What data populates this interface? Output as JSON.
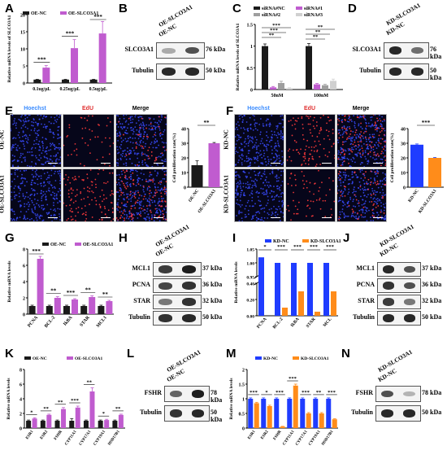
{
  "panels": {
    "A": "A",
    "B": "B",
    "C": "C",
    "D": "D",
    "E": "E",
    "F": "F",
    "G": "G",
    "H": "H",
    "I": "I",
    "J": "J",
    "K": "K",
    "L": "L",
    "M": "M",
    "N": "N"
  },
  "colors": {
    "black": "#1a1a1a",
    "purple": "#c05ccf",
    "grey": "#9e9e9e",
    "lightgrey": "#d0d0d0",
    "blue": "#1f3cff",
    "orange": "#ff8c1a",
    "hoechst": "#3b8cff",
    "edu": "#e03030",
    "merge": "#ffffff"
  },
  "chart_data": [
    {
      "id": "A",
      "type": "bar",
      "ylabel": "Relative mRNA levels of SLCO3A1",
      "categories": [
        "0.1ug/μL",
        "0.25ug/μL",
        "0.5ug/μL"
      ],
      "series": [
        {
          "name": "OE-NC",
          "values": [
            1,
            1,
            1
          ]
        },
        {
          "name": "OE-SLCO3A1",
          "values": [
            4.5,
            10.2,
            14.5
          ]
        }
      ],
      "errors": [
        [
          0.1,
          0.1,
          0.1
        ],
        [
          0.6,
          2.5,
          3.5
        ]
      ],
      "ylim": [
        0,
        20
      ],
      "yticks": [
        0,
        5,
        10,
        15,
        20
      ],
      "sig": [
        "***",
        "***",
        "***"
      ]
    },
    {
      "id": "C",
      "type": "bar",
      "ylabel": "Relative mRNA levels of SLCO3A1",
      "categories": [
        "50nM",
        "100nM"
      ],
      "series": [
        {
          "name": "siRNA#NC",
          "values": [
            1.0,
            1.0
          ]
        },
        {
          "name": "siRNA#1",
          "values": [
            0.05,
            0.12
          ]
        },
        {
          "name": "siRNA#2",
          "values": [
            0.15,
            0.1
          ]
        },
        {
          "name": "siRNA#3",
          "values": [
            0.03,
            0.2
          ]
        }
      ],
      "errors": [
        [
          0.05,
          0.06
        ],
        [
          0.02,
          0.02
        ],
        [
          0.04,
          0.02
        ],
        [
          0.01,
          0.04
        ]
      ],
      "ylim": [
        0,
        1.5
      ],
      "yticks": [
        0.0,
        0.5,
        1.0,
        1.5
      ],
      "sig": [
        "**",
        "***",
        "***",
        "**",
        "**",
        "**"
      ]
    },
    {
      "id": "E",
      "type": "bar",
      "ylabel": "Cell proliferation rate(%)",
      "categories": [
        "OE-NC",
        "OE-SLCO3A1"
      ],
      "values": [
        15,
        30
      ],
      "errors": [
        3,
        0.5
      ],
      "ylim": [
        0,
        40
      ],
      "yticks": [
        0,
        10,
        20,
        30,
        40
      ],
      "sig": [
        "**"
      ]
    },
    {
      "id": "F",
      "type": "bar",
      "ylabel": "Cell proliferation rate(%)",
      "categories": [
        "KD-NC",
        "KD-SLCO3A1"
      ],
      "values": [
        29,
        20
      ],
      "errors": [
        0.5,
        0.3
      ],
      "ylim": [
        0,
        40
      ],
      "yticks": [
        0,
        10,
        20,
        30,
        40
      ],
      "sig": [
        "***"
      ]
    },
    {
      "id": "G",
      "type": "bar",
      "ylabel": "Relative mRNA levels",
      "categories": [
        "PCNA",
        "BCL-2",
        "IkBA",
        "STAR",
        "MCL1"
      ],
      "series": [
        {
          "name": "OE-NC",
          "values": [
            1,
            1,
            1,
            1,
            1
          ]
        },
        {
          "name": "OE-SLCO3A1",
          "values": [
            6.8,
            2.0,
            1.8,
            2.1,
            1.6
          ]
        }
      ],
      "errors": [
        [
          0.1,
          0.1,
          0.1,
          0.1,
          0.1
        ],
        [
          0.3,
          0.15,
          0.1,
          0.15,
          0.1
        ]
      ],
      "ylim": [
        0,
        8
      ],
      "yticks": [
        0,
        2,
        4,
        6,
        8
      ],
      "sig": [
        "***",
        "**",
        "***",
        "**",
        "**"
      ]
    },
    {
      "id": "I",
      "type": "bar",
      "ylabel": "Relative mRNA levels",
      "categories": [
        "PCNA",
        "BCL-2",
        "IkBA",
        "STAR",
        "MCL"
      ],
      "series": [
        {
          "name": "KD-NC",
          "values": [
            1.02,
            1.0,
            1.0,
            1.0,
            1.0
          ]
        },
        {
          "name": "KD-SLCO3A1",
          "values": [
            0.65,
            0.1,
            0.3,
            0.05,
            0.3
          ]
        }
      ],
      "errors": [
        [
          0.02,
          0.01,
          0.01,
          0.01,
          0.03
        ],
        [
          0.02,
          0.01,
          0.01,
          0.01,
          0.01
        ]
      ],
      "ylim": [
        0,
        1.05
      ],
      "yticks": [
        0.0,
        0.2,
        0.4,
        0.95,
        1.0,
        1.05
      ],
      "sig": [
        "*",
        "***",
        "***",
        "***",
        "***"
      ]
    },
    {
      "id": "K",
      "type": "bar",
      "ylabel": "Relative mRNA levels",
      "categories": [
        "ESR1",
        "ESR2",
        "FSHR",
        "CYP11A1",
        "CYP17A1",
        "CYP19A1",
        "HSD17B1"
      ],
      "series": [
        {
          "name": "OE-NC",
          "values": [
            1,
            1,
            1,
            1,
            1,
            1,
            1
          ]
        },
        {
          "name": "OE-SLCO3A1",
          "values": [
            1.3,
            1.8,
            2.6,
            2.8,
            5.0,
            1.1,
            1.8
          ]
        }
      ],
      "errors": [
        [
          0.1,
          0.1,
          0.1,
          0.3,
          0.1,
          0.1,
          0.1
        ],
        [
          0.1,
          0.1,
          0.2,
          0.2,
          0.5,
          0.1,
          0.1
        ]
      ],
      "ylim": [
        0,
        8
      ],
      "yticks": [
        0,
        2,
        4,
        6,
        8
      ],
      "sig": [
        "*",
        "**",
        "**",
        "***",
        "**",
        "*",
        "**"
      ]
    },
    {
      "id": "M",
      "type": "bar",
      "ylabel": "Relative mRNA levels",
      "categories": [
        "ESR1",
        "ESR2",
        "FSHR",
        "CYP11A1",
        "CYP17A1",
        "CYP19A1",
        "HSD17B1"
      ],
      "series": [
        {
          "name": "KD-NC",
          "values": [
            1,
            1,
            1,
            1,
            1,
            1,
            1
          ]
        },
        {
          "name": "KD-SLCO3A1",
          "values": [
            0.85,
            0.75,
            0.05,
            1.45,
            0.5,
            0.5,
            0.3
          ]
        }
      ],
      "errors": [
        [
          0.03,
          0.03,
          0.03,
          0.03,
          0.03,
          0.03,
          0.03
        ],
        [
          0.03,
          0.03,
          0.01,
          0.05,
          0.03,
          0.03,
          0.02
        ]
      ],
      "ylim": [
        0,
        2.0
      ],
      "yticks": [
        0.0,
        0.5,
        1.0,
        1.5,
        2.0
      ],
      "sig": [
        "***",
        "*",
        "***",
        "***",
        "***",
        "**",
        "***"
      ]
    }
  ],
  "blots": {
    "B": {
      "lanes": [
        "OE-NC",
        "OE-SLCO3A1"
      ],
      "rows": [
        {
          "name": "SLCO3A1",
          "kda": "76 kDa"
        },
        {
          "name": "Tubulin",
          "kda": "50 kDa"
        }
      ]
    },
    "D": {
      "lanes": [
        "KD-NC",
        "KD-SLCO3A1"
      ],
      "rows": [
        {
          "name": "SLCO3A1",
          "kda": "76 kDa"
        },
        {
          "name": "Tubulin",
          "kda": "50 kDa"
        }
      ]
    },
    "H": {
      "lanes": [
        "OE-NC",
        "OE-SLCO3A1"
      ],
      "rows": [
        {
          "name": "MCL1",
          "kda": "37 kDa"
        },
        {
          "name": "PCNA",
          "kda": "36 kDa"
        },
        {
          "name": "STAR",
          "kda": "32 kDa"
        },
        {
          "name": "Tubulin",
          "kda": "50 kDa"
        }
      ]
    },
    "J": {
      "lanes": [
        "KD-NC",
        "KD-SLCO3A1"
      ],
      "rows": [
        {
          "name": "MCL1",
          "kda": "37 kDa"
        },
        {
          "name": "PCNA",
          "kda": "36 kDa"
        },
        {
          "name": "STAR",
          "kda": "32 kDa"
        },
        {
          "name": "Tubulin",
          "kda": "50 kDa"
        }
      ]
    },
    "L": {
      "lanes": [
        "OE-NC",
        "OE-SLCO3A1"
      ],
      "rows": [
        {
          "name": "FSHR",
          "kda": "78 kDa"
        },
        {
          "name": "Tubulin",
          "kda": "50 kDa"
        }
      ]
    },
    "N": {
      "lanes": [
        "KD-NC",
        "KD-SLCO3A1"
      ],
      "rows": [
        {
          "name": "FSHR",
          "kda": "78 kDa"
        },
        {
          "name": "Tubulin",
          "kda": "50 kDa"
        }
      ]
    }
  },
  "microscopy": {
    "E": {
      "headers": [
        "Hoechst",
        "EdU",
        "Merge"
      ],
      "rows": [
        "OE-NC",
        "OE-SLCO3A1"
      ]
    },
    "F": {
      "headers": [
        "Hoechst",
        "EdU",
        "Merge"
      ],
      "rows": [
        "KD-NC",
        "KD-SLCO3A1"
      ]
    }
  }
}
